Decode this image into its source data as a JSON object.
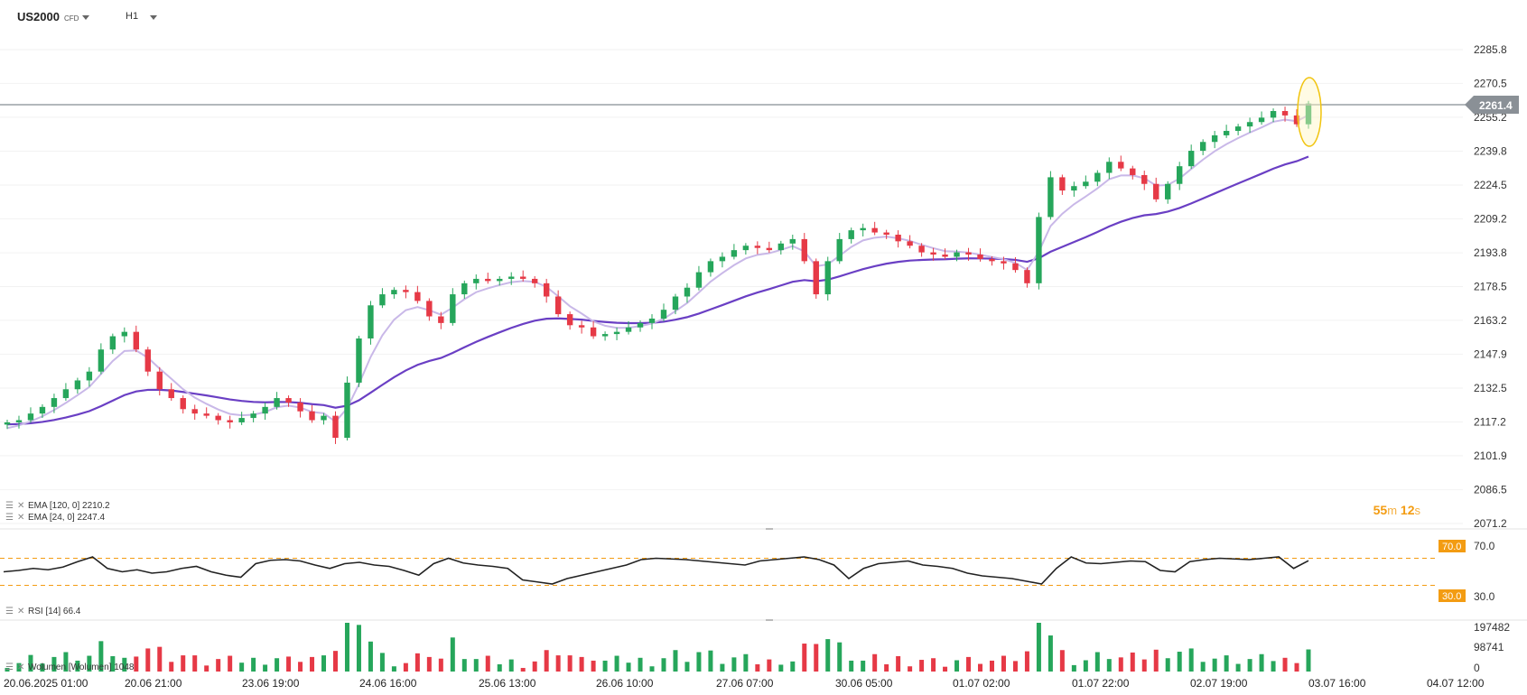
{
  "header": {
    "symbol": "US2000",
    "symbol_tag": "CFD",
    "timeframe": "H1"
  },
  "price_axis": [
    "2285.8",
    "2270.5",
    "2255.2",
    "2239.8",
    "2224.5",
    "2209.2",
    "2193.8",
    "2178.5",
    "2163.2",
    "2147.9",
    "2132.5",
    "2117.2",
    "2101.9",
    "2086.5",
    "2071.2"
  ],
  "current_price": "2261.4",
  "timer": {
    "min": "55",
    "min_unit": "m",
    "sec": "12",
    "sec_unit": "s"
  },
  "legends": {
    "ema120": "EMA  [120, 0]  2210.2",
    "ema24": "EMA  [24, 0]  2247.4",
    "rsi": "RSI  [14]  66.4",
    "volume": "Wolumen  [Wolumen]  1048"
  },
  "rsi_levels": {
    "upper": "70.0",
    "lower": "30.0",
    "upper_axis": "70.0",
    "lower_axis": "30.0"
  },
  "volume_axis": [
    "197482",
    "98741",
    "0"
  ],
  "x_axis": [
    "20.06.2025  01:00",
    "20.06  21:00",
    "23.06  19:00",
    "24.06  16:00",
    "25.06  13:00",
    "26.06  10:00",
    "27.06  07:00",
    "30.06  05:00",
    "01.07  02:00",
    "01.07  22:00",
    "02.07  19:00",
    "03.07  16:00",
    "04.07  12:00"
  ],
  "colors": {
    "up": "#26a65b",
    "down": "#e63946",
    "ema120": "#6a3fc4",
    "ema24": "#c9b8e8",
    "rsi_level": "#f39c12",
    "price_tag": "#8a9096"
  },
  "chart_data": {
    "type": "candlestick",
    "interval": "H1",
    "y_range": [
      2071.2,
      2285.8
    ],
    "price_path": [
      2117,
      2118,
      2121,
      2124,
      2128,
      2132,
      2136,
      2140,
      2150,
      2156,
      2158,
      2150,
      2140,
      2132,
      2128,
      2123,
      2121,
      2120,
      2118,
      2117,
      2119,
      2121,
      2124,
      2128,
      2126,
      2122,
      2118,
      2120,
      2110,
      2135,
      2155,
      2170,
      2175,
      2177,
      2176,
      2172,
      2165,
      2162,
      2175,
      2180,
      2182,
      2181,
      2182,
      2183,
      2182,
      2180,
      2174,
      2166,
      2161,
      2160,
      2156,
      2157,
      2158,
      2160,
      2162,
      2164,
      2168,
      2174,
      2178,
      2185,
      2190,
      2192,
      2195,
      2197,
      2196,
      2195,
      2198,
      2200,
      2190,
      2175,
      2190,
      2200,
      2204,
      2205,
      2203,
      2202,
      2199,
      2197,
      2194,
      2193,
      2192,
      2194,
      2193,
      2191,
      2190,
      2189,
      2186,
      2180,
      2210,
      2228,
      2222,
      2224,
      2226,
      2230,
      2235,
      2232,
      2229,
      2225,
      2218,
      2225,
      2233,
      2240,
      2244,
      2247,
      2249,
      2251,
      2253,
      2255,
      2258,
      2256,
      2252,
      2261.4
    ],
    "ema24": {
      "name": "EMA [24, 0]",
      "last": 2247.4
    },
    "ema120": {
      "name": "EMA [120, 0]",
      "last": 2210.2
    },
    "rsi": {
      "name": "RSI [14]",
      "last": 66.4,
      "levels": [
        70,
        30
      ],
      "path": [
        50,
        52,
        55,
        53,
        57,
        65,
        72,
        55,
        50,
        53,
        48,
        50,
        55,
        58,
        50,
        45,
        42,
        62,
        67,
        68,
        66,
        60,
        55,
        62,
        64,
        60,
        58,
        52,
        45,
        62,
        70,
        63,
        60,
        58,
        55,
        38,
        35,
        32,
        40,
        45,
        50,
        55,
        60,
        68,
        70,
        69,
        68,
        66,
        64,
        62,
        60,
        66,
        68,
        70,
        72,
        68,
        60,
        40,
        55,
        62,
        64,
        66,
        60,
        58,
        55,
        48,
        44,
        42,
        40,
        36,
        32,
        55,
        72,
        63,
        62,
        64,
        66,
        65,
        52,
        50,
        65,
        68,
        70,
        69,
        68,
        70,
        72,
        55,
        66.4
      ]
    },
    "volume": {
      "name": "Wolumen",
      "last": 1048,
      "y_range": [
        0,
        197482
      ]
    }
  }
}
